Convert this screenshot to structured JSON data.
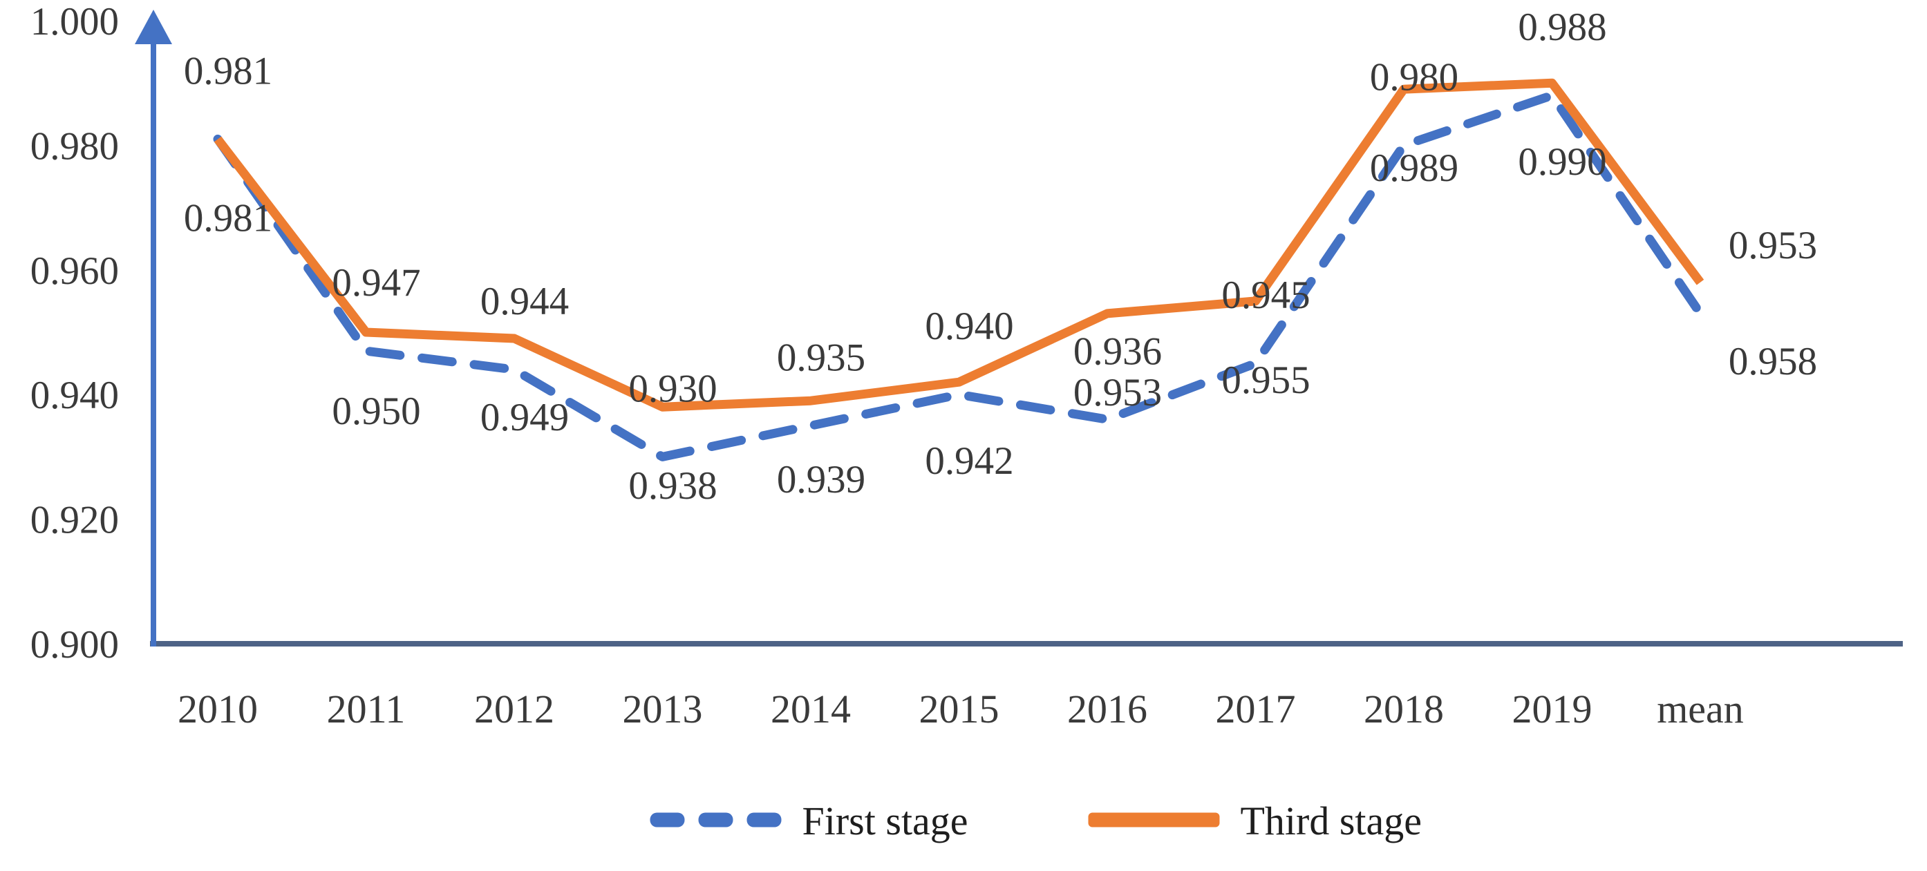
{
  "chart_data": {
    "type": "line",
    "title": "",
    "categories": [
      "2010",
      "2011",
      "2012",
      "2013",
      "2014",
      "2015",
      "2016",
      "2017",
      "2018",
      "2019",
      "mean"
    ],
    "series": [
      {
        "name": "First stage",
        "color": "#4472C4",
        "line_style": "dashed",
        "label_position": "above",
        "values": [
          0.981,
          0.947,
          0.944,
          0.93,
          0.935,
          0.94,
          0.936,
          0.945,
          0.98,
          0.988,
          0.953
        ],
        "point_labels": [
          "0.981",
          "0.947",
          "0.944",
          "0.930",
          "0.935",
          "0.940",
          "0.936",
          "0.945",
          "0.980",
          "0.988",
          "0.953"
        ]
      },
      {
        "name": "Third stage",
        "color": "#ED7D31",
        "line_style": "solid",
        "label_position": "below",
        "values": [
          0.981,
          0.95,
          0.949,
          0.938,
          0.939,
          0.942,
          0.953,
          0.955,
          0.989,
          0.99,
          0.958
        ],
        "point_labels": [
          "0.981",
          "0.950",
          "0.949",
          "0.938",
          "0.939",
          "0.942",
          "0.953",
          "0.955",
          "0.989",
          "0.990",
          "0.958"
        ]
      }
    ],
    "y_axis": {
      "min": 0.9,
      "max": 1.0,
      "tick_labels": [
        "1.000",
        "0.980",
        "0.960",
        "0.940",
        "0.920",
        "0.900"
      ],
      "tick_values": [
        1.0,
        0.98,
        0.96,
        0.94,
        0.92,
        0.9
      ],
      "arrow": true
    },
    "x_axis": {
      "line": true,
      "arrow": false
    },
    "grid": false,
    "legend": {
      "position": "bottom-center",
      "entries": [
        "First stage",
        "Third stage"
      ]
    },
    "colors": {
      "first_stage": "#4472C4",
      "third_stage": "#ED7D31",
      "y_axis_line": "#4472C4",
      "x_axis_line": "#4E6386",
      "label_text": "#3A3A3A",
      "background": "#FFFFFF"
    }
  }
}
